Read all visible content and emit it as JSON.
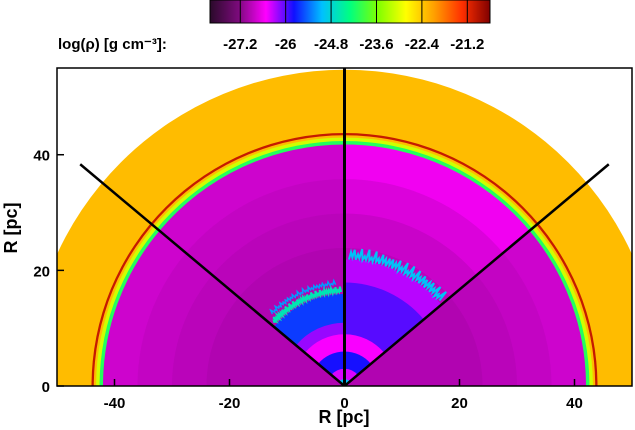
{
  "chart_data": {
    "type": "heatmap",
    "title": "",
    "colorbar": {
      "label": "log(ρ) [g cm⁻³]:",
      "ticks": [
        "-27.2",
        "-26",
        "-24.8",
        "-23.6",
        "-22.4",
        "-21.2"
      ],
      "tick_values": [
        -27.2,
        -26.0,
        -24.8,
        -23.6,
        -22.4,
        -21.2
      ],
      "range": [
        -28.0,
        -20.6
      ],
      "colors": [
        "#2a0a2a",
        "#7a0a7a",
        "#ff00ff",
        "#1010ff",
        "#00c0ff",
        "#00ff80",
        "#80ff00",
        "#ffff00",
        "#ffa000",
        "#ff3000",
        "#800000"
      ]
    },
    "xlabel": "R [pc]",
    "ylabel": "R [pc]",
    "xlim": [
      -50,
      50
    ],
    "ylim": [
      0,
      55
    ],
    "x_ticks": [
      -40,
      -20,
      0,
      20,
      40
    ],
    "x_tick_labels": [
      "-40",
      "-20",
      "0",
      "20",
      "40"
    ],
    "y_ticks": [
      0,
      20,
      40
    ],
    "y_tick_labels": [
      "0",
      "20",
      "40"
    ],
    "domain_radius": 55,
    "background_log_density": -22.3,
    "shell": {
      "inner_radius": 42,
      "outer_radius": 44,
      "log_density": -23.5
    },
    "dividers_deg": [
      40,
      90,
      140
    ],
    "regions": [
      {
        "from_deg": 140,
        "to_deg": 180,
        "cavity_log_density": -26.8,
        "instability_radius": 0
      },
      {
        "from_deg": 90,
        "to_deg": 140,
        "cavity_log_density": -26.8,
        "instability_radius": 16
      },
      {
        "from_deg": 40,
        "to_deg": 90,
        "cavity_log_density": -26.6,
        "instability_radius": 22
      },
      {
        "from_deg": 0,
        "to_deg": 40,
        "cavity_log_density": -26.8,
        "instability_radius": 0
      }
    ],
    "grid": false
  },
  "colors": {
    "background": "#ffffff",
    "axis": "#000000",
    "divider": "#000000"
  }
}
